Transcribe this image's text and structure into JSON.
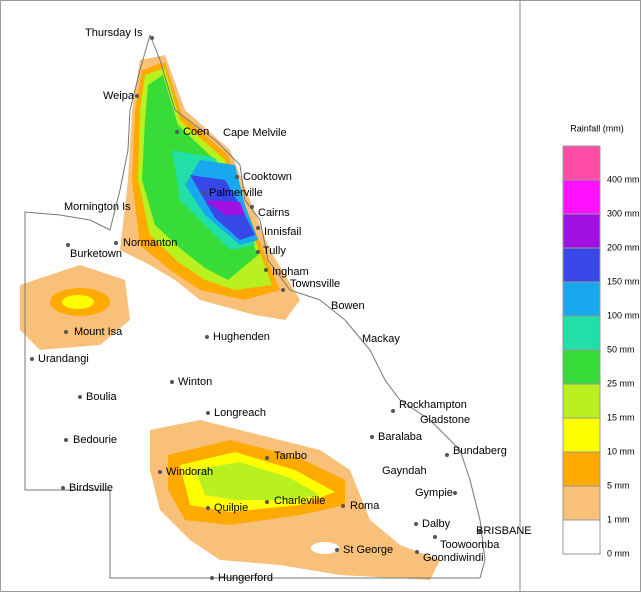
{
  "map": {
    "places": [
      {
        "label": "Thursday Is"
      },
      {
        "label": "Weipa"
      },
      {
        "label": "Coen"
      },
      {
        "label": "Cape Melvile"
      },
      {
        "label": "Cooktown"
      },
      {
        "label": "Palmerville"
      },
      {
        "label": "Cairns"
      },
      {
        "label": "Mornington Is"
      },
      {
        "label": "Innisfail"
      },
      {
        "label": "Normanton"
      },
      {
        "label": "Burketown"
      },
      {
        "label": "Tully"
      },
      {
        "label": "Ingham"
      },
      {
        "label": "Townsville"
      },
      {
        "label": "Bowen"
      },
      {
        "label": "Mount Isa"
      },
      {
        "label": "Hughenden"
      },
      {
        "label": "Mackay"
      },
      {
        "label": "Urandangi"
      },
      {
        "label": "Winton"
      },
      {
        "label": "Boulia"
      },
      {
        "label": "Rockhampton"
      },
      {
        "label": "Longreach"
      },
      {
        "label": "Gladstone"
      },
      {
        "label": "Bedourie"
      },
      {
        "label": "Baralaba"
      },
      {
        "label": "Bundaberg"
      },
      {
        "label": "Tambo"
      },
      {
        "label": "Windorah"
      },
      {
        "label": "Gayndah"
      },
      {
        "label": "Birdsville"
      },
      {
        "label": "Gympie"
      },
      {
        "label": "Charleville"
      },
      {
        "label": "Roma"
      },
      {
        "label": "Quilpie"
      },
      {
        "label": "Dalby"
      },
      {
        "label": "BRISBANE"
      },
      {
        "label": "Toowoomba"
      },
      {
        "label": "St George"
      },
      {
        "label": "Goondiwindi"
      },
      {
        "label": "Hungerford"
      }
    ],
    "legend": {
      "title": "Rainfall (mm)",
      "items": [
        {
          "label": "400 mm",
          "color": "#ff4da6"
        },
        {
          "label": "300 mm",
          "color": "#ff10ff"
        },
        {
          "label": "200 mm",
          "color": "#a010e0"
        },
        {
          "label": "150 mm",
          "color": "#3848e8"
        },
        {
          "label": "100 mm",
          "color": "#18a8f0"
        },
        {
          "label": "50 mm",
          "color": "#20e0a8"
        },
        {
          "label": "25 mm",
          "color": "#38dc38"
        },
        {
          "label": "15 mm",
          "color": "#b8f020"
        },
        {
          "label": "10 mm",
          "color": "#ffff00"
        },
        {
          "label": "5 mm",
          "color": "#ffaa00"
        },
        {
          "label": "1 mm",
          "color": "#f8c078"
        },
        {
          "label": "0 mm",
          "color": "#ffffff"
        }
      ]
    }
  }
}
